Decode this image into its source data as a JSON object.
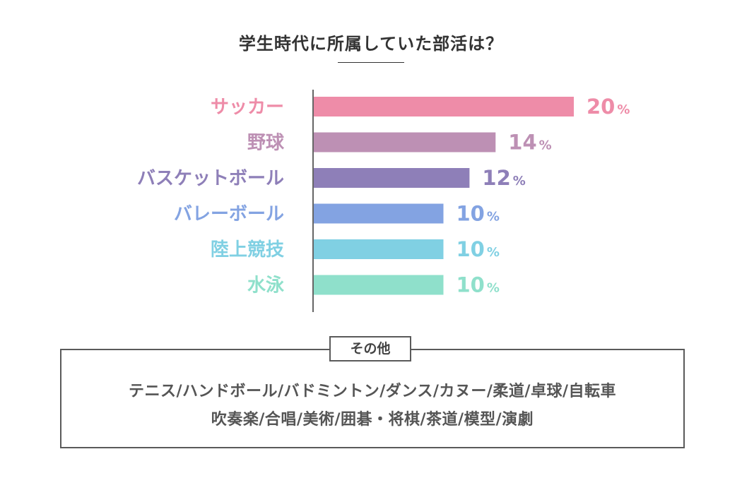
{
  "chart_data": {
    "type": "bar",
    "orientation": "horizontal",
    "title": "学生時代に所属していた部活は？",
    "categories": [
      "サッカー",
      "野球",
      "バスケットボール",
      "バレーボール",
      "陸上競技",
      "水泳"
    ],
    "values": [
      20,
      14,
      12,
      10,
      10,
      10
    ],
    "value_labels": [
      "20",
      "14",
      "12",
      "10",
      "10",
      "10"
    ],
    "unit": "%",
    "colors": [
      "#ee8ca8",
      "#bd90b4",
      "#8e7fb8",
      "#83a3e2",
      "#80d0e3",
      "#8fe0cb"
    ],
    "xlim": [
      0,
      20
    ],
    "grid": false,
    "legend": "none"
  },
  "other": {
    "label": "その他",
    "lines": [
      "テニス/ハンドボール/バドミントン/ダンス/カヌー/柔道/卓球/自転車",
      "吹奏楽/合唱/美術/囲碁・将棋/茶道/模型/演劇"
    ]
  }
}
